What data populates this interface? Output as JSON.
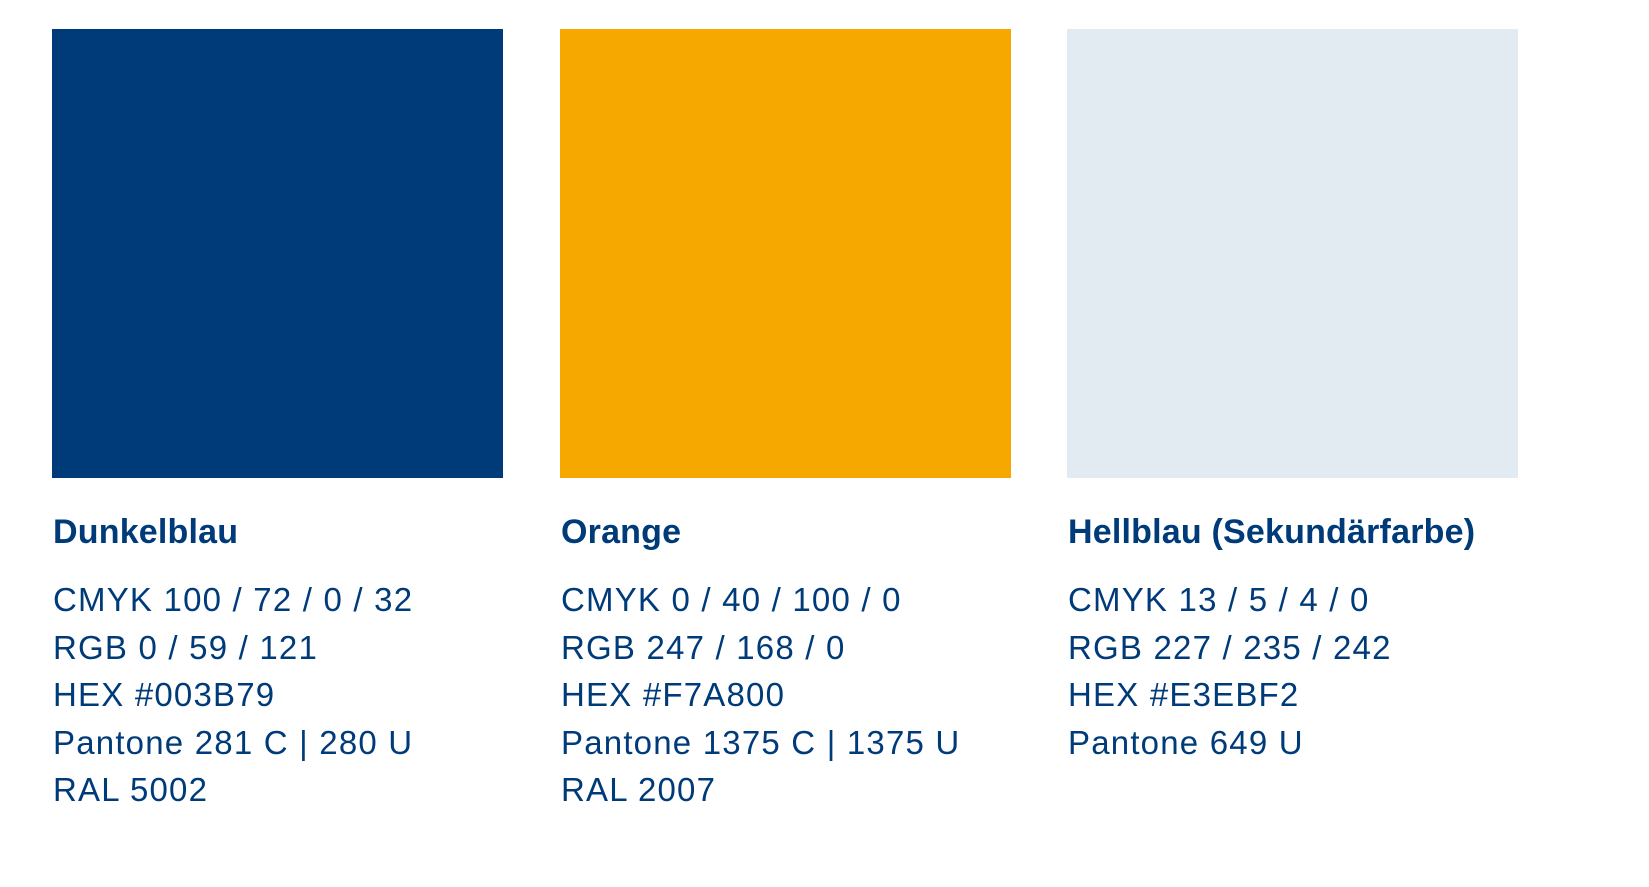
{
  "colors": [
    {
      "name": "Dunkelblau",
      "swatch": "#003B79",
      "specs": [
        "CMYK 100 / 72 / 0 / 32",
        "RGB 0 / 59 / 121",
        "HEX #003B79",
        "Pantone 281 C | 280 U",
        "RAL 5002"
      ]
    },
    {
      "name": "Orange",
      "swatch": "#F7A800",
      "specs": [
        "CMYK 0 / 40 / 100 / 0",
        "RGB 247 / 168 / 0",
        "HEX #F7A800",
        "Pantone 1375 C | 1375 U",
        "RAL 2007"
      ]
    },
    {
      "name": "Hellblau (Sekundärfarbe)",
      "swatch": "#E3EBF2",
      "specs": [
        "CMYK 13 / 5 / 4 / 0",
        "RGB 227 / 235 / 242",
        "HEX #E3EBF2",
        "Pantone 649 U"
      ]
    }
  ],
  "text_color": "#003B79"
}
